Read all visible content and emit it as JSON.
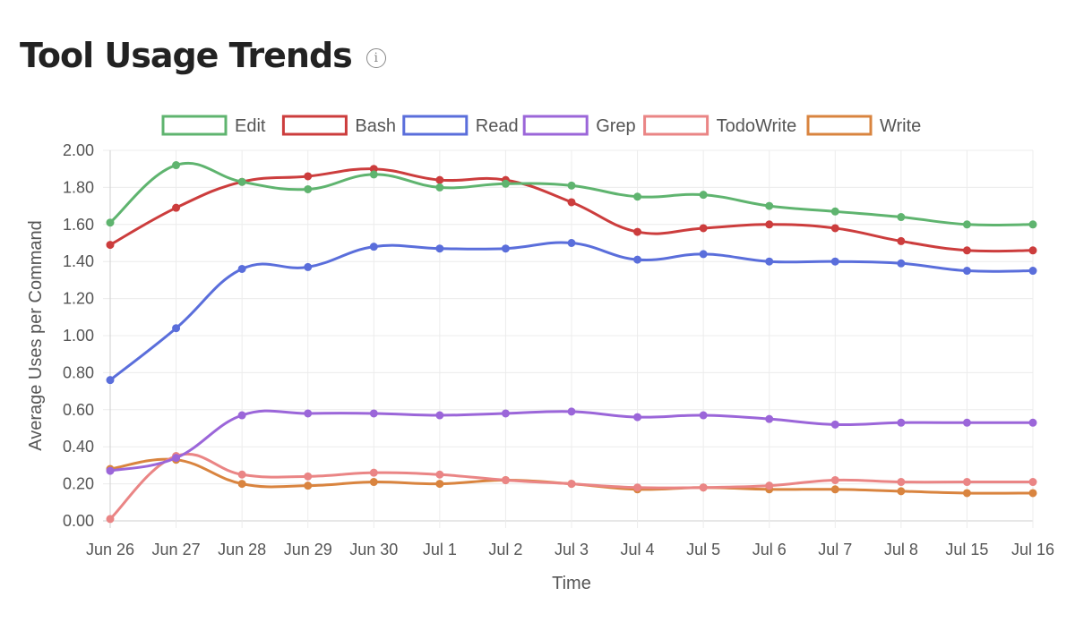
{
  "header": {
    "title": "Tool Usage Trends",
    "info_icon": "info-circle-icon"
  },
  "chart_data": {
    "type": "line",
    "title": "",
    "xlabel": "Time",
    "ylabel": "Average Uses per Command",
    "ylim": [
      0,
      2.0
    ],
    "y_ticks": [
      "0.00",
      "0.20",
      "0.40",
      "0.60",
      "0.80",
      "1.00",
      "1.20",
      "1.40",
      "1.60",
      "1.80",
      "2.00"
    ],
    "grid": true,
    "legend_position": "top",
    "categories": [
      "Jun 26",
      "Jun 27",
      "Jun 28",
      "Jun 29",
      "Jun 30",
      "Jul 1",
      "Jul 2",
      "Jul 3",
      "Jul 4",
      "Jul 5",
      "Jul 6",
      "Jul 7",
      "Jul 8",
      "Jul 15",
      "Jul 16"
    ],
    "series": [
      {
        "name": "Edit",
        "color": "#5fb46f",
        "values": [
          1.61,
          1.92,
          1.83,
          1.79,
          1.87,
          1.8,
          1.82,
          1.81,
          1.75,
          1.76,
          1.7,
          1.67,
          1.64,
          1.6,
          1.6
        ]
      },
      {
        "name": "Bash",
        "color": "#cc3d3d",
        "values": [
          1.49,
          1.69,
          1.83,
          1.86,
          1.9,
          1.84,
          1.84,
          1.72,
          1.56,
          1.58,
          1.6,
          1.58,
          1.51,
          1.46,
          1.46
        ]
      },
      {
        "name": "Read",
        "color": "#5a6edb",
        "values": [
          0.76,
          1.04,
          1.36,
          1.37,
          1.48,
          1.47,
          1.47,
          1.5,
          1.41,
          1.44,
          1.4,
          1.4,
          1.39,
          1.35,
          1.35
        ]
      },
      {
        "name": "Grep",
        "color": "#9b66d9",
        "values": [
          0.27,
          0.34,
          0.57,
          0.58,
          0.58,
          0.57,
          0.58,
          0.59,
          0.56,
          0.57,
          0.55,
          0.52,
          0.53,
          0.53,
          0.53
        ]
      },
      {
        "name": "TodoWrite",
        "color": "#ea8585",
        "values": [
          0.01,
          0.35,
          0.25,
          0.24,
          0.26,
          0.25,
          0.22,
          0.2,
          0.18,
          0.18,
          0.19,
          0.22,
          0.21,
          0.21,
          0.21
        ]
      },
      {
        "name": "Write",
        "color": "#d9843f",
        "values": [
          0.28,
          0.33,
          0.2,
          0.19,
          0.21,
          0.2,
          0.22,
          0.2,
          0.17,
          0.18,
          0.17,
          0.17,
          0.16,
          0.15,
          0.15
        ]
      }
    ]
  }
}
